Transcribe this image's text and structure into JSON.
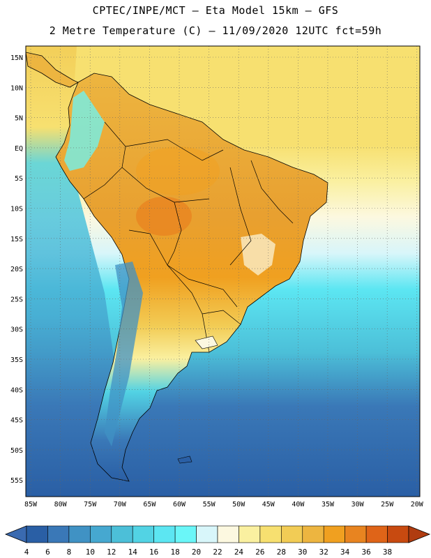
{
  "title_line1": "CPTEC/INPE/MCT –  Eta Model 15km – GFS",
  "title_line2": "2 Metre Temperature (C) – 11/09/2020 12UTC fct=59h",
  "map": {
    "lat_labels": [
      "15N",
      "10N",
      "5N",
      "EQ",
      "5S",
      "10S",
      "15S",
      "20S",
      "25S",
      "30S",
      "35S",
      "40S",
      "45S",
      "50S",
      "55S"
    ],
    "lon_labels": [
      "85W",
      "80W",
      "75W",
      "70W",
      "65W",
      "60W",
      "55W",
      "50W",
      "45W",
      "40W",
      "35W",
      "30W",
      "25W",
      "20W"
    ],
    "grid": "dotted"
  },
  "colorbar": {
    "labels": [
      "4",
      "6",
      "8",
      "10",
      "12",
      "14",
      "16",
      "18",
      "20",
      "22",
      "24",
      "26",
      "28",
      "30",
      "32",
      "34",
      "36",
      "38"
    ],
    "colors": [
      "#2a5fa5",
      "#3a78b7",
      "#4092c4",
      "#46a8d0",
      "#4cbfd8",
      "#52d3e4",
      "#5ce6f2",
      "#6af6f8",
      "#d8f6fa",
      "#fcf8e0",
      "#faf0a0",
      "#f7e070",
      "#f2cc55",
      "#edb540",
      "#f0a020",
      "#e88420",
      "#df6418",
      "#c84a10"
    ],
    "under_color": "#3a6ab0",
    "over_color": "#b03c10"
  }
}
